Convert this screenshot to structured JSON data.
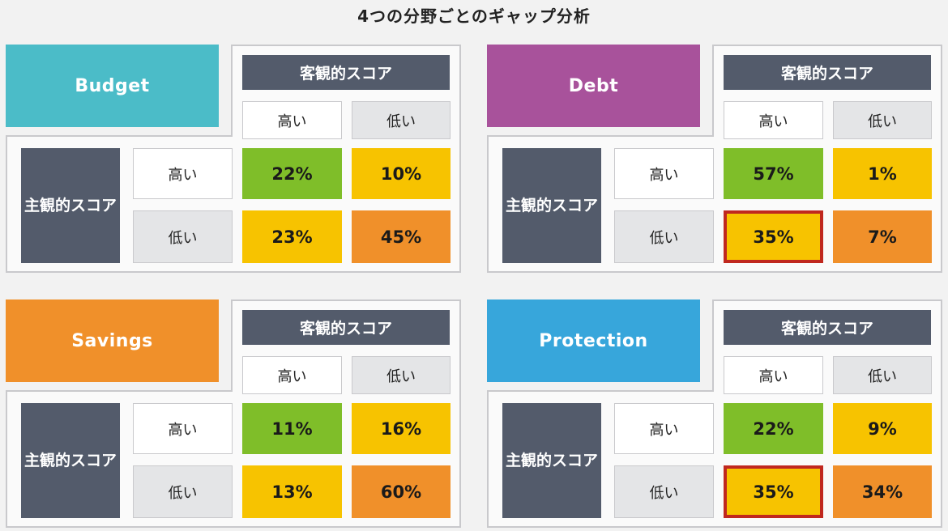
{
  "title": "4つの分野ごとのギャップ分析",
  "labels": {
    "objective": "客観的スコア",
    "subjective_line1": "主観的",
    "subjective_line2": "スコア",
    "high": "高い",
    "low": "低い"
  },
  "colors": {
    "dark_header": "#535b6b",
    "green": "#7fbe29",
    "yellow": "#f7c300",
    "orange": "#f0902a",
    "highlight_border": "#c0281f"
  },
  "chart_data": [
    {
      "type": "table",
      "category": "Budget",
      "category_color": "#4bbcc8",
      "rows": [
        "高い",
        "低い"
      ],
      "columns": [
        "高い",
        "低い"
      ],
      "row_axis": "主観的スコア",
      "column_axis": "客観的スコア",
      "values": [
        [
          "22%",
          "10%"
        ],
        [
          "23%",
          "45%"
        ]
      ],
      "cell_colors": [
        [
          "#7fbe29",
          "#f7c300"
        ],
        [
          "#f7c300",
          "#f0902a"
        ]
      ],
      "highlighted": []
    },
    {
      "type": "table",
      "category": "Debt",
      "category_color": "#a8529b",
      "rows": [
        "高い",
        "低い"
      ],
      "columns": [
        "高い",
        "低い"
      ],
      "row_axis": "主観的スコア",
      "column_axis": "客観的スコア",
      "values": [
        [
          "57%",
          "1%"
        ],
        [
          "35%",
          "7%"
        ]
      ],
      "cell_colors": [
        [
          "#7fbe29",
          "#f7c300"
        ],
        [
          "#f7c300",
          "#f0902a"
        ]
      ],
      "highlighted": [
        "low-high"
      ]
    },
    {
      "type": "table",
      "category": "Savings",
      "category_color": "#f0902a",
      "rows": [
        "高い",
        "低い"
      ],
      "columns": [
        "高い",
        "低い"
      ],
      "row_axis": "主観的スコア",
      "column_axis": "客観的スコア",
      "values": [
        [
          "11%",
          "16%"
        ],
        [
          "13%",
          "60%"
        ]
      ],
      "cell_colors": [
        [
          "#7fbe29",
          "#f7c300"
        ],
        [
          "#f7c300",
          "#f0902a"
        ]
      ],
      "highlighted": []
    },
    {
      "type": "table",
      "category": "Protection",
      "category_color": "#37a6db",
      "rows": [
        "高い",
        "低い"
      ],
      "columns": [
        "高い",
        "低い"
      ],
      "row_axis": "主観的スコア",
      "column_axis": "客観的スコア",
      "values": [
        [
          "22%",
          "9%"
        ],
        [
          "35%",
          "34%"
        ]
      ],
      "cell_colors": [
        [
          "#7fbe29",
          "#f7c300"
        ],
        [
          "#f7c300",
          "#f0902a"
        ]
      ],
      "highlighted": [
        "low-high"
      ]
    }
  ]
}
